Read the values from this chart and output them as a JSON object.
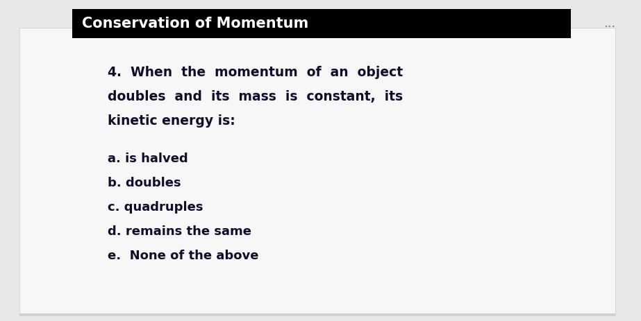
{
  "bg_outer": "#e8e8e8",
  "bg_card": "#f7f7f8",
  "header_bg": "#000000",
  "header_text": "Conservation of Momentum",
  "header_text_color": "#ffffff",
  "header_font_size": 15,
  "q_line1": "4.  When  the  momentum  of  an  object",
  "q_line2": "doubles  and  its  mass  is  constant,  its",
  "q_line3": "kinetic energy is:",
  "options": [
    "a. is halved",
    "b. doubles",
    "c. quadruples",
    "d. remains the same",
    "e.  None of the above"
  ],
  "text_color": "#0d0d2b",
  "q_font_size": 13.5,
  "opt_font_size": 13,
  "dots_text": "...",
  "dots_color": "#777777",
  "dots_font_size": 13
}
